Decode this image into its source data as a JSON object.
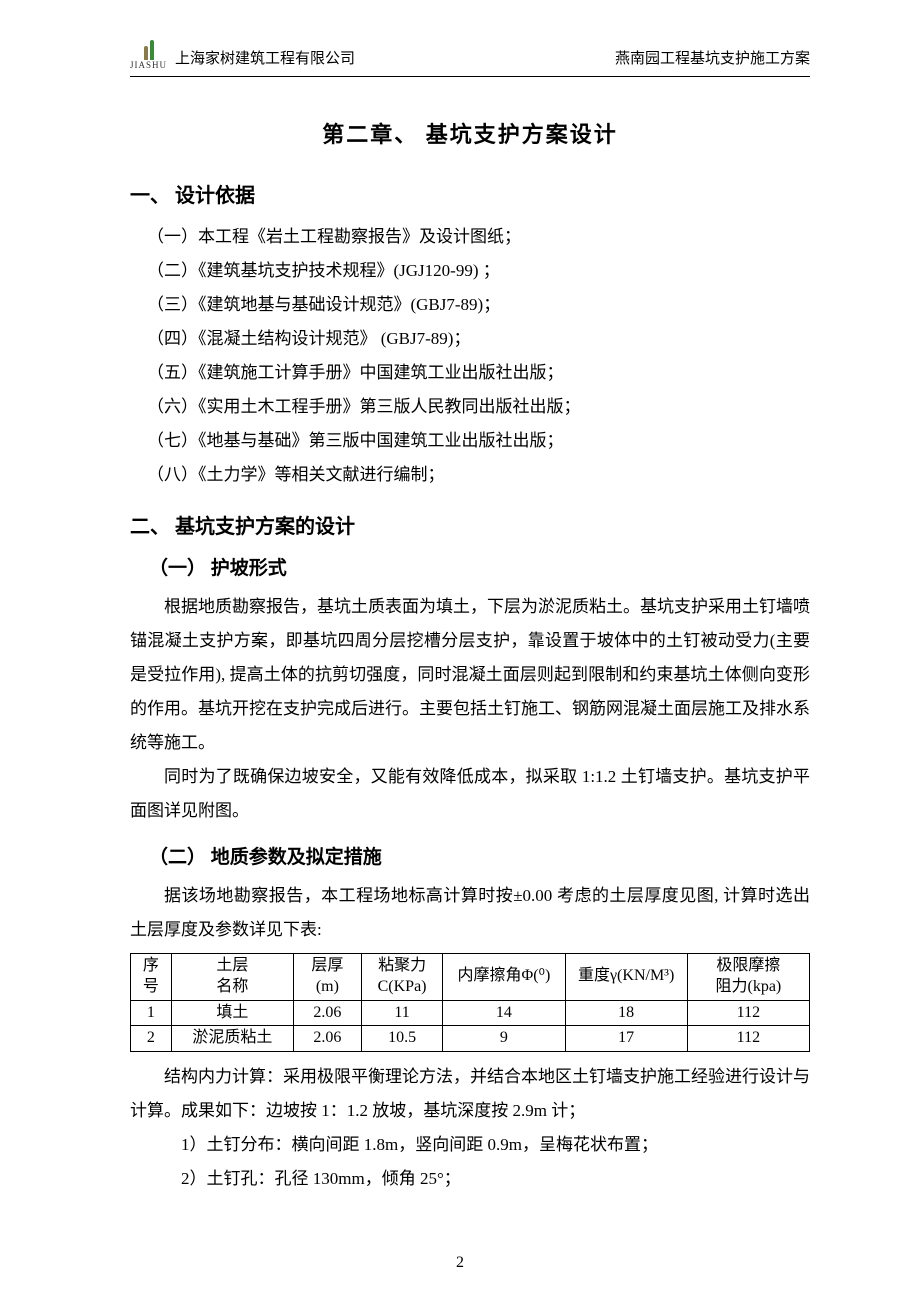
{
  "header": {
    "logo_text": "JIASHU",
    "company": "上海家树建筑工程有限公司",
    "doc_title": "燕南园工程基坑支护施工方案"
  },
  "chapter": "第二章、  基坑支护方案设计",
  "sec1": {
    "heading": "一、    设计依据",
    "items": [
      "（一）本工程《岩土工程勘察报告》及设计图纸；",
      "（二）《建筑基坑支护技术规程》(JGJ120-99) ；",
      "（三）《建筑地基与基础设计规范》(GBJ7-89)；",
      "（四）《混凝土结构设计规范》    (GBJ7-89)；",
      "（五）《建筑施工计算手册》中国建筑工业出版社出版；",
      "（六）《实用土木工程手册》第三版人民教同出版社出版；",
      "（七）《地基与基础》第三版中国建筑工业出版社出版；",
      "（八）《土力学》等相关文献进行编制；"
    ]
  },
  "sec2": {
    "heading": "二、    基坑支护方案的设计",
    "sub1": {
      "heading": "（一） 护坡形式",
      "p1": "根据地质勘察报告，基坑土质表面为填土，下层为淤泥质粘土。基坑支护采用土钉墙喷锚混凝土支护方案，即基坑四周分层挖槽分层支护，靠设置于坡体中的土钉被动受力(主要是受拉作用),  提高土体的抗剪切强度，同时混凝土面层则起到限制和约束基坑土体侧向变形的作用。基坑开挖在支护完成后进行。主要包括土钉施工、钢筋网混凝土面层施工及排水系统等施工。",
      "p2": "同时为了既确保边坡安全，又能有效降低成本，拟采取 1:1.2 土钉墙支护。基坑支护平面图详见附图。"
    },
    "sub2": {
      "heading": "（二） 地质参数及拟定措施",
      "p1": "据该场地勘察报告，本工程场地标高计算时按±0.00 考虑的土层厚度见图, 计算时选出土层厚度及参数详见下表:",
      "table": {
        "columns": [
          "序号",
          "土层\n名称",
          "层厚\n(m)",
          "粘聚力\nC(KPa)",
          "内摩擦角Φ(⁰)",
          "重度γ(KN/M³)",
          "极限摩擦\n阻力(kpa)"
        ],
        "col_widths": [
          "6%",
          "18%",
          "10%",
          "12%",
          "18%",
          "18%",
          "18%"
        ],
        "rows": [
          [
            "1",
            "填土",
            "2.06",
            "11",
            "14",
            "18",
            "112"
          ],
          [
            "2",
            "淤泥质粘土",
            "2.06",
            "10.5",
            "9",
            "17",
            "112"
          ]
        ]
      },
      "p2": "结构内力计算：采用极限平衡理论方法，并结合本地区土钉墙支护施工经验进行设计与计算。成果如下：边坡按 1：1.2 放坡，基坑深度按 2.9m 计；",
      "list": [
        "1）土钉分布：横向间距 1.8m，竖向间距 0.9m，呈梅花状布置；",
        "2）土钉孔：孔径 130mm，倾角 25°；"
      ]
    }
  },
  "page_number": "2"
}
